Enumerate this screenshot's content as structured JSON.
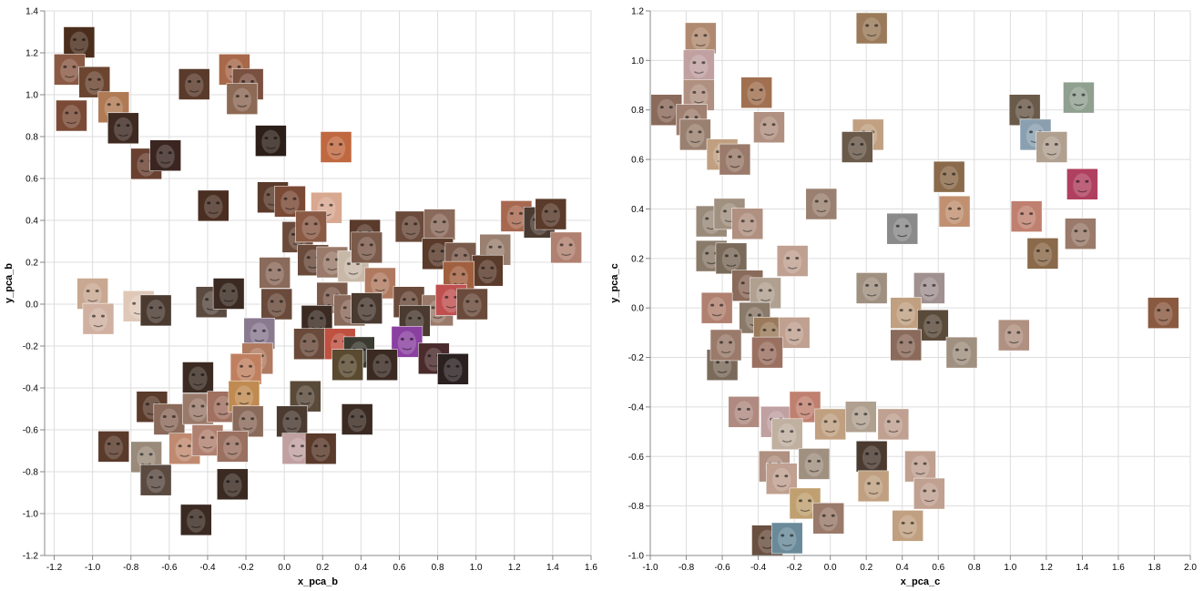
{
  "chart_data": [
    {
      "type": "scatter",
      "marker": "face-thumbnail-image",
      "xlabel": "x_pca_b",
      "ylabel": "y_pca_b",
      "xlim": [
        -1.25,
        1.6
      ],
      "ylim": [
        -1.2,
        1.4
      ],
      "xticks": [
        "-1.2",
        "-1.0",
        "-0.8",
        "-0.6",
        "-0.4",
        "-0.2",
        "0.0",
        "0.2",
        "0.4",
        "0.6",
        "0.8",
        "1.0",
        "1.2",
        "1.4",
        "1.6"
      ],
      "yticks": [
        "-1.2",
        "-1.0",
        "-0.8",
        "-0.6",
        "-0.4",
        "-0.2",
        "0.0",
        "0.2",
        "0.4",
        "0.6",
        "0.8",
        "1.0",
        "1.2",
        "1.4"
      ],
      "grid": true,
      "points": [
        {
          "x": -1.07,
          "y": 1.25,
          "c": "#4a2d1c"
        },
        {
          "x": -1.12,
          "y": 1.12,
          "c": "#8a5a45"
        },
        {
          "x": -0.99,
          "y": 1.06,
          "c": "#6b4530"
        },
        {
          "x": -0.89,
          "y": 0.94,
          "c": "#b07a55"
        },
        {
          "x": -1.11,
          "y": 0.9,
          "c": "#7a4a36"
        },
        {
          "x": -0.84,
          "y": 0.84,
          "c": "#3f2a22"
        },
        {
          "x": -0.47,
          "y": 1.05,
          "c": "#5a3a2a"
        },
        {
          "x": -0.26,
          "y": 1.12,
          "c": "#a8684a"
        },
        {
          "x": -0.19,
          "y": 1.05,
          "c": "#7a5040"
        },
        {
          "x": -0.22,
          "y": 0.98,
          "c": "#8d6a55"
        },
        {
          "x": -0.07,
          "y": 0.78,
          "c": "#2c1e18"
        },
        {
          "x": 0.27,
          "y": 0.75,
          "c": "#c06840"
        },
        {
          "x": -0.72,
          "y": 0.67,
          "c": "#6a4030"
        },
        {
          "x": -0.62,
          "y": 0.71,
          "c": "#3a2520"
        },
        {
          "x": -0.37,
          "y": 0.47,
          "c": "#4a2e22"
        },
        {
          "x": -0.06,
          "y": 0.51,
          "c": "#5a3a2a"
        },
        {
          "x": 0.03,
          "y": 0.49,
          "c": "#7a4a36"
        },
        {
          "x": 0.22,
          "y": 0.46,
          "c": "#d8a890"
        },
        {
          "x": 0.07,
          "y": 0.32,
          "c": "#6a4a3a"
        },
        {
          "x": 0.14,
          "y": 0.37,
          "c": "#8a5a45"
        },
        {
          "x": 0.42,
          "y": 0.33,
          "c": "#5a3a2a"
        },
        {
          "x": 0.66,
          "y": 0.37,
          "c": "#6a4a3a"
        },
        {
          "x": 0.81,
          "y": 0.38,
          "c": "#8a6a5a"
        },
        {
          "x": 1.21,
          "y": 0.42,
          "c": "#a86850"
        },
        {
          "x": 1.33,
          "y": 0.39,
          "c": "#4a3a30"
        },
        {
          "x": 1.39,
          "y": 0.43,
          "c": "#5a3a2a"
        },
        {
          "x": 1.47,
          "y": 0.27,
          "c": "#b08070"
        },
        {
          "x": 0.8,
          "y": 0.24,
          "c": "#5a3a2a"
        },
        {
          "x": 0.92,
          "y": 0.22,
          "c": "#7a5a4a"
        },
        {
          "x": 1.1,
          "y": 0.26,
          "c": "#9a8070"
        },
        {
          "x": 1.06,
          "y": 0.16,
          "c": "#5a3a2a"
        },
        {
          "x": 0.15,
          "y": 0.21,
          "c": "#6a4a3a"
        },
        {
          "x": 0.25,
          "y": 0.2,
          "c": "#9a7a6a"
        },
        {
          "x": 0.36,
          "y": 0.18,
          "c": "#c8b8a8"
        },
        {
          "x": 0.43,
          "y": 0.27,
          "c": "#7a5a4a"
        },
        {
          "x": -0.05,
          "y": 0.15,
          "c": "#8a6a5a"
        },
        {
          "x": 0.91,
          "y": 0.13,
          "c": "#a06040"
        },
        {
          "x": 0.5,
          "y": 0.1,
          "c": "#b07a60"
        },
        {
          "x": -1.0,
          "y": 0.05,
          "c": "#c8a890"
        },
        {
          "x": -0.97,
          "y": -0.07,
          "c": "#d0b0a0"
        },
        {
          "x": -0.76,
          "y": -0.01,
          "c": "#e0c8b8"
        },
        {
          "x": -0.67,
          "y": -0.03,
          "c": "#4a3a30"
        },
        {
          "x": -0.38,
          "y": 0.01,
          "c": "#5a4a40"
        },
        {
          "x": -0.29,
          "y": 0.05,
          "c": "#3a2a22"
        },
        {
          "x": -0.04,
          "y": 0.0,
          "c": "#6a4a3a"
        },
        {
          "x": 0.25,
          "y": 0.03,
          "c": "#7a5a4a"
        },
        {
          "x": 0.17,
          "y": -0.08,
          "c": "#3a2a22"
        },
        {
          "x": 0.34,
          "y": -0.03,
          "c": "#8a6a5a"
        },
        {
          "x": 0.43,
          "y": -0.02,
          "c": "#4a3a30"
        },
        {
          "x": 0.65,
          "y": 0.01,
          "c": "#6a4a3a"
        },
        {
          "x": 0.8,
          "y": -0.03,
          "c": "#9a7a6a"
        },
        {
          "x": 0.87,
          "y": 0.02,
          "c": "#c05050"
        },
        {
          "x": 0.98,
          "y": 0.0,
          "c": "#6a4a3a"
        },
        {
          "x": 0.68,
          "y": -0.08,
          "c": "#4a3a30"
        },
        {
          "x": -0.13,
          "y": -0.14,
          "c": "#8a7a90"
        },
        {
          "x": -0.14,
          "y": -0.26,
          "c": "#b07a60"
        },
        {
          "x": 0.13,
          "y": -0.19,
          "c": "#6a4a3a"
        },
        {
          "x": 0.29,
          "y": -0.19,
          "c": "#c05040"
        },
        {
          "x": 0.39,
          "y": -0.23,
          "c": "#3a3a30"
        },
        {
          "x": 0.64,
          "y": -0.18,
          "c": "#8a40a0"
        },
        {
          "x": 0.33,
          "y": -0.29,
          "c": "#5a4a30"
        },
        {
          "x": 0.51,
          "y": -0.29,
          "c": "#3a2a22"
        },
        {
          "x": 0.78,
          "y": -0.26,
          "c": "#4a2a2a"
        },
        {
          "x": 0.88,
          "y": -0.31,
          "c": "#2a2020"
        },
        {
          "x": -0.2,
          "y": -0.31,
          "c": "#c08060"
        },
        {
          "x": -0.45,
          "y": -0.35,
          "c": "#3a2a22"
        },
        {
          "x": -0.69,
          "y": -0.49,
          "c": "#5a3a2a"
        },
        {
          "x": -0.6,
          "y": -0.55,
          "c": "#8a6a5a"
        },
        {
          "x": -0.45,
          "y": -0.5,
          "c": "#9a7a6a"
        },
        {
          "x": -0.32,
          "y": -0.49,
          "c": "#a07060"
        },
        {
          "x": -0.21,
          "y": -0.44,
          "c": "#c08a50"
        },
        {
          "x": -0.19,
          "y": -0.56,
          "c": "#8a6a5a"
        },
        {
          "x": 0.11,
          "y": -0.44,
          "c": "#5a4a3a"
        },
        {
          "x": 0.04,
          "y": -0.56,
          "c": "#4a3a30"
        },
        {
          "x": 0.38,
          "y": -0.55,
          "c": "#3a2a22"
        },
        {
          "x": -0.89,
          "y": -0.68,
          "c": "#5a3a2a"
        },
        {
          "x": -0.72,
          "y": -0.73,
          "c": "#9a8a7a"
        },
        {
          "x": -0.52,
          "y": -0.69,
          "c": "#c08a70"
        },
        {
          "x": -0.4,
          "y": -0.65,
          "c": "#b08070"
        },
        {
          "x": -0.27,
          "y": -0.68,
          "c": "#9a7060"
        },
        {
          "x": 0.07,
          "y": -0.69,
          "c": "#c0a0a0"
        },
        {
          "x": 0.19,
          "y": -0.69,
          "c": "#5a3a2a"
        },
        {
          "x": -0.67,
          "y": -0.84,
          "c": "#5a4a40"
        },
        {
          "x": -0.27,
          "y": -0.86,
          "c": "#3a2a22"
        },
        {
          "x": -0.46,
          "y": -1.03,
          "c": "#3a2a22"
        }
      ]
    },
    {
      "type": "scatter",
      "marker": "face-thumbnail-image",
      "xlabel": "x_pca_c",
      "ylabel": "y_pca_c",
      "xlim": [
        -1.0,
        2.0
      ],
      "ylim": [
        -1.0,
        1.2
      ],
      "xticks": [
        "-1.0",
        "-0.8",
        "-0.6",
        "-0.4",
        "-0.2",
        "0.0",
        "0.2",
        "0.4",
        "0.6",
        "0.8",
        "1.0",
        "1.2",
        "1.4",
        "1.6",
        "1.8",
        "2.0"
      ],
      "yticks": [
        "-1.0",
        "-0.8",
        "-0.6",
        "-0.4",
        "-0.2",
        "0.0",
        "0.2",
        "0.4",
        "0.6",
        "0.8",
        "1.0",
        "1.2"
      ],
      "grid": true,
      "points": [
        {
          "x": 0.23,
          "y": 1.13,
          "c": "#9a7a5a"
        },
        {
          "x": -0.72,
          "y": 1.09,
          "c": "#b08a70"
        },
        {
          "x": -0.73,
          "y": 0.98,
          "c": "#c0a0a0"
        },
        {
          "x": -0.73,
          "y": 0.86,
          "c": "#b09080"
        },
        {
          "x": -0.41,
          "y": 0.87,
          "c": "#a07050"
        },
        {
          "x": -0.91,
          "y": 0.8,
          "c": "#8a6a5a"
        },
        {
          "x": -0.77,
          "y": 0.76,
          "c": "#a08070"
        },
        {
          "x": -0.34,
          "y": 0.73,
          "c": "#b09080"
        },
        {
          "x": -0.75,
          "y": 0.7,
          "c": "#9a8070"
        },
        {
          "x": -0.6,
          "y": 0.62,
          "c": "#c0a080"
        },
        {
          "x": -0.53,
          "y": 0.6,
          "c": "#9a7a6a"
        },
        {
          "x": 0.21,
          "y": 0.7,
          "c": "#c0a080"
        },
        {
          "x": 0.15,
          "y": 0.65,
          "c": "#6a5a4a"
        },
        {
          "x": 1.08,
          "y": 0.8,
          "c": "#6a5a4a"
        },
        {
          "x": 1.14,
          "y": 0.7,
          "c": "#8aa0b0"
        },
        {
          "x": 1.23,
          "y": 0.65,
          "c": "#b0a090"
        },
        {
          "x": 1.38,
          "y": 0.85,
          "c": "#90a090"
        },
        {
          "x": 0.66,
          "y": 0.53,
          "c": "#8a6a4a"
        },
        {
          "x": 0.69,
          "y": 0.39,
          "c": "#c09070"
        },
        {
          "x": 1.4,
          "y": 0.5,
          "c": "#b04060"
        },
        {
          "x": -0.05,
          "y": 0.42,
          "c": "#9a8070"
        },
        {
          "x": -0.66,
          "y": 0.35,
          "c": "#9a8a7a"
        },
        {
          "x": -0.56,
          "y": 0.38,
          "c": "#a09080"
        },
        {
          "x": -0.46,
          "y": 0.34,
          "c": "#b09080"
        },
        {
          "x": 0.4,
          "y": 0.32,
          "c": "#8a8a8a"
        },
        {
          "x": 1.09,
          "y": 0.37,
          "c": "#c08070"
        },
        {
          "x": 1.39,
          "y": 0.3,
          "c": "#9a7a6a"
        },
        {
          "x": 1.18,
          "y": 0.22,
          "c": "#8a6a4a"
        },
        {
          "x": -0.66,
          "y": 0.21,
          "c": "#8a7a6a"
        },
        {
          "x": -0.55,
          "y": 0.2,
          "c": "#7a6a5a"
        },
        {
          "x": -0.21,
          "y": 0.19,
          "c": "#c0a090"
        },
        {
          "x": -0.46,
          "y": 0.09,
          "c": "#8a6a5a"
        },
        {
          "x": -0.36,
          "y": 0.06,
          "c": "#b0a090"
        },
        {
          "x": 0.23,
          "y": 0.08,
          "c": "#a09080"
        },
        {
          "x": 0.55,
          "y": 0.08,
          "c": "#a09090"
        },
        {
          "x": -0.63,
          "y": 0.0,
          "c": "#b08070"
        },
        {
          "x": -0.42,
          "y": -0.04,
          "c": "#8a7a6a"
        },
        {
          "x": -0.34,
          "y": -0.1,
          "c": "#9a7a5a"
        },
        {
          "x": -0.2,
          "y": -0.1,
          "c": "#c0a090"
        },
        {
          "x": 0.42,
          "y": -0.02,
          "c": "#c0a080"
        },
        {
          "x": 0.57,
          "y": -0.07,
          "c": "#5a4a3a"
        },
        {
          "x": 0.42,
          "y": -0.15,
          "c": "#8a6a5a"
        },
        {
          "x": 0.73,
          "y": -0.18,
          "c": "#a09080"
        },
        {
          "x": 1.02,
          "y": -0.11,
          "c": "#b09080"
        },
        {
          "x": 1.85,
          "y": -0.02,
          "c": "#8a5a40"
        },
        {
          "x": -0.6,
          "y": -0.23,
          "c": "#7a6a5a"
        },
        {
          "x": -0.58,
          "y": -0.15,
          "c": "#9a7a6a"
        },
        {
          "x": -0.35,
          "y": -0.18,
          "c": "#9a7060"
        },
        {
          "x": -0.48,
          "y": -0.42,
          "c": "#b08a80"
        },
        {
          "x": -0.3,
          "y": -0.46,
          "c": "#c0a0a0"
        },
        {
          "x": -0.14,
          "y": -0.4,
          "c": "#c08070"
        },
        {
          "x": 0.0,
          "y": -0.47,
          "c": "#c0a080"
        },
        {
          "x": 0.17,
          "y": -0.44,
          "c": "#b0a090"
        },
        {
          "x": 0.35,
          "y": -0.47,
          "c": "#c0a090"
        },
        {
          "x": -0.24,
          "y": -0.51,
          "c": "#c0b0a0"
        },
        {
          "x": 0.23,
          "y": -0.6,
          "c": "#4a3a30"
        },
        {
          "x": 0.5,
          "y": -0.64,
          "c": "#c0a090"
        },
        {
          "x": -0.31,
          "y": -0.64,
          "c": "#b09080"
        },
        {
          "x": -0.09,
          "y": -0.63,
          "c": "#a09080"
        },
        {
          "x": -0.27,
          "y": -0.69,
          "c": "#c0a090"
        },
        {
          "x": 0.24,
          "y": -0.72,
          "c": "#c0a080"
        },
        {
          "x": 0.55,
          "y": -0.75,
          "c": "#c0a090"
        },
        {
          "x": -0.14,
          "y": -0.79,
          "c": "#c0a070"
        },
        {
          "x": -0.01,
          "y": -0.85,
          "c": "#9a7a6a"
        },
        {
          "x": 0.43,
          "y": -0.88,
          "c": "#c0a080"
        },
        {
          "x": -0.35,
          "y": -0.94,
          "c": "#6a5040"
        },
        {
          "x": -0.24,
          "y": -0.93,
          "c": "#6a8a9a"
        }
      ]
    }
  ]
}
